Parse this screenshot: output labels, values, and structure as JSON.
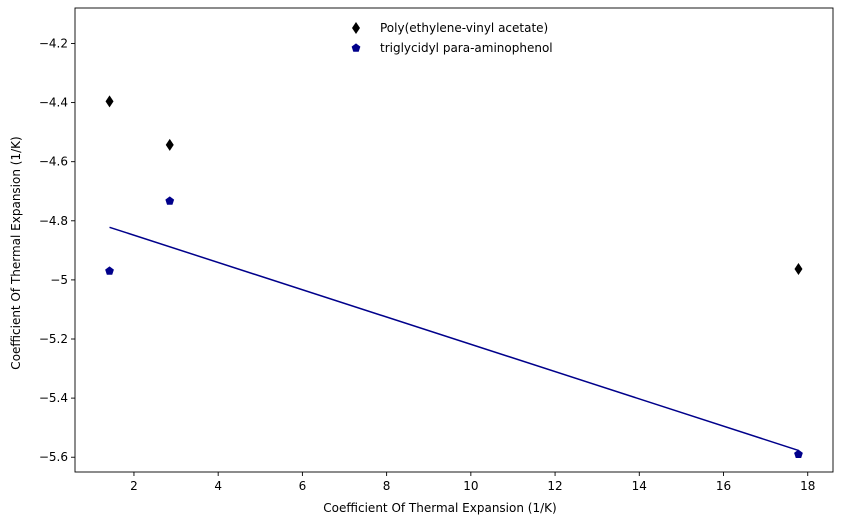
{
  "chart_data": {
    "type": "scatter",
    "title": "",
    "xlabel": "Coefficient Of Thermal Expansion (1/K)",
    "ylabel": "Coefficient Of Thermal Expansion (1/K)",
    "xlim": [
      0.6,
      18.6
    ],
    "ylim": [
      -5.65,
      -4.08
    ],
    "xticks": [
      2,
      4,
      6,
      8,
      10,
      12,
      14,
      16,
      18
    ],
    "yticks": [
      -5.6,
      -5.4,
      -5.2,
      -5.0,
      -4.8,
      -4.6,
      -4.4,
      -4.2
    ],
    "grid": false,
    "legend_position": "top-center",
    "series": [
      {
        "name": "Poly(ethylene-vinyl acetate)",
        "marker": "diamond",
        "color": "#000000",
        "points": [
          {
            "x": 1.42,
            "y": -4.396
          },
          {
            "x": 2.85,
            "y": -4.543
          },
          {
            "x": 17.78,
            "y": -4.963
          }
        ]
      },
      {
        "name": "triglycidyl para-aminophenol",
        "marker": "pentagon",
        "color": "#00008b",
        "points": [
          {
            "x": 1.42,
            "y": -4.97
          },
          {
            "x": 2.85,
            "y": -4.733
          },
          {
            "x": 17.78,
            "y": -5.59
          }
        ]
      }
    ],
    "fit_line": {
      "color": "#00008b",
      "points": [
        {
          "x": 1.42,
          "y": -4.822
        },
        {
          "x": 17.78,
          "y": -5.577
        }
      ]
    }
  }
}
